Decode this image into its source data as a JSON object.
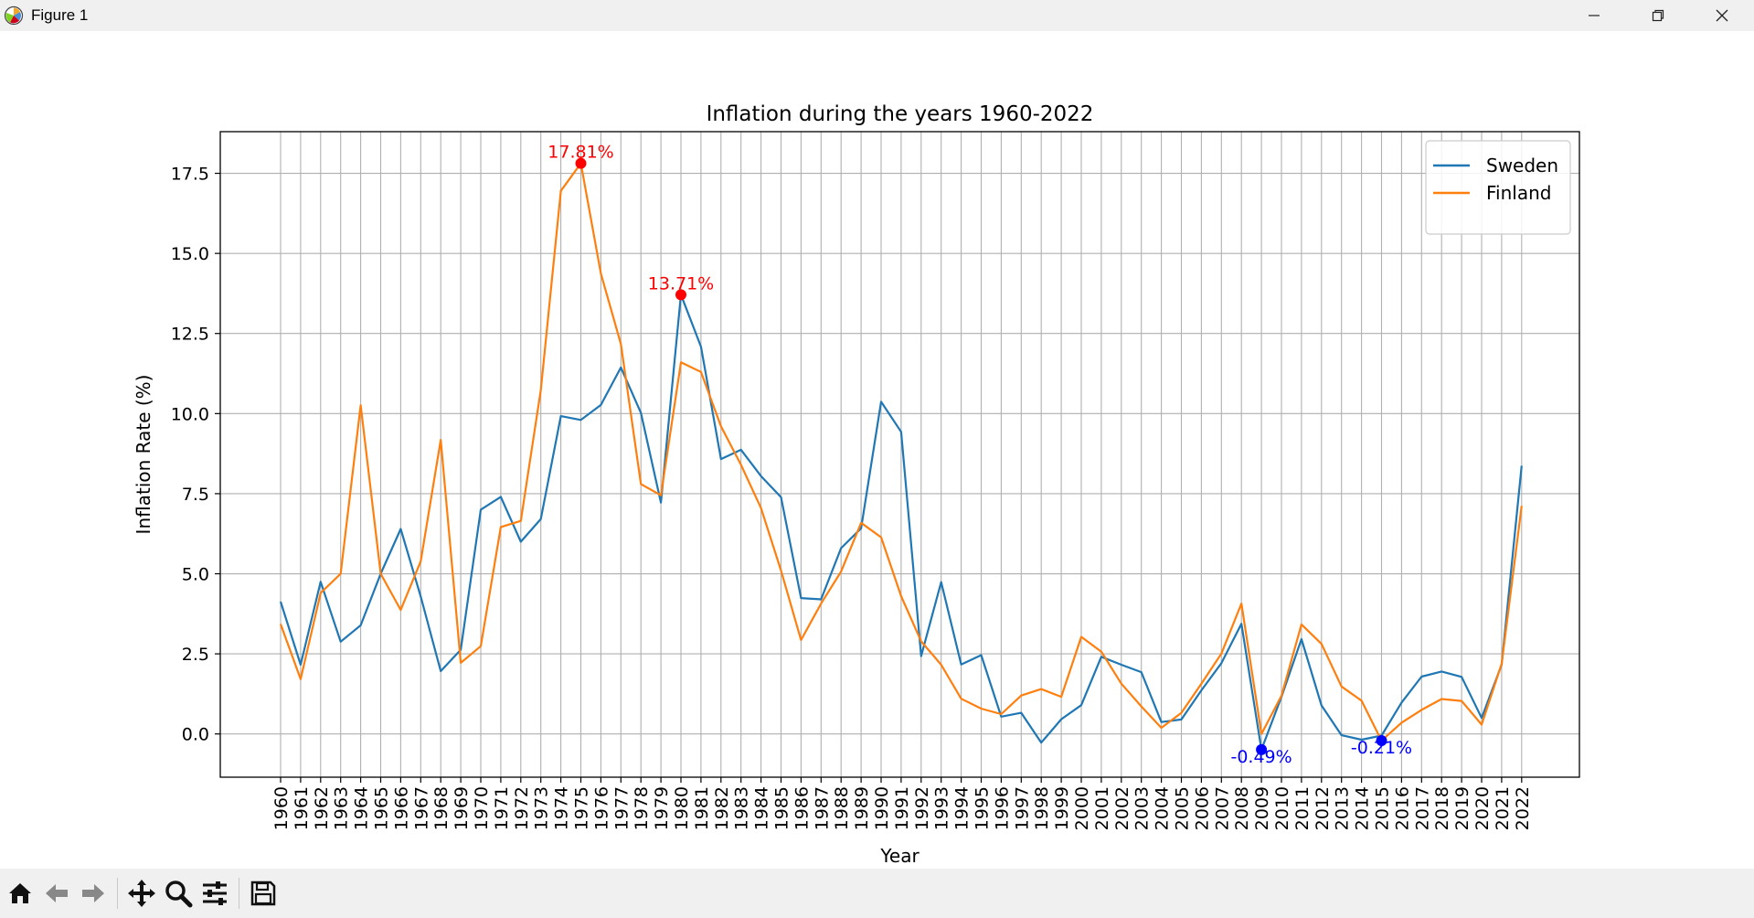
{
  "window": {
    "title": "Figure 1"
  },
  "toolbar": {
    "buttons": [
      "home-icon",
      "back-arrow-icon",
      "forward-arrow-icon",
      "pan-icon",
      "zoom-icon",
      "configure-subplots-icon",
      "save-icon"
    ]
  },
  "colors": {
    "sweden": "#1f77b4",
    "finland": "#ff7f0e",
    "max_marker": "#ff0000",
    "min_marker": "#0000ff"
  },
  "chart_data": {
    "type": "line",
    "title": "Inflation during the years 1960-2022",
    "xlabel": "Year",
    "ylabel": "Inflation Rate (%)",
    "ylim": [
      -1.35,
      18.8
    ],
    "yticks": [
      0.0,
      2.5,
      5.0,
      7.5,
      10.0,
      12.5,
      15.0,
      17.5
    ],
    "ytick_labels": [
      "0.0",
      "2.5",
      "5.0",
      "7.5",
      "10.0",
      "12.5",
      "15.0",
      "17.5"
    ],
    "grid": true,
    "legend_position": "top-right",
    "x": [
      "1960",
      "1961",
      "1962",
      "1963",
      "1964",
      "1965",
      "1966",
      "1967",
      "1968",
      "1969",
      "1970",
      "1971",
      "1972",
      "1973",
      "1974",
      "1975",
      "1976",
      "1977",
      "1978",
      "1979",
      "1980",
      "1981",
      "1982",
      "1983",
      "1984",
      "1985",
      "1986",
      "1987",
      "1988",
      "1989",
      "1990",
      "1991",
      "1992",
      "1993",
      "1994",
      "1995",
      "1996",
      "1997",
      "1998",
      "1999",
      "2000",
      "2001",
      "2002",
      "2003",
      "2004",
      "2005",
      "2006",
      "2007",
      "2008",
      "2009",
      "2010",
      "2011",
      "2012",
      "2013",
      "2014",
      "2015",
      "2016",
      "2017",
      "2018",
      "2019",
      "2020",
      "2021",
      "2022"
    ],
    "series": [
      {
        "name": "Sweden",
        "color": "#1f77b4",
        "values": [
          4.13,
          2.16,
          4.75,
          2.88,
          3.39,
          5.0,
          6.4,
          4.29,
          1.96,
          2.63,
          7.0,
          7.4,
          6.0,
          6.71,
          9.92,
          9.8,
          10.27,
          11.44,
          10.02,
          7.22,
          13.71,
          12.09,
          8.58,
          8.87,
          8.05,
          7.39,
          4.24,
          4.2,
          5.8,
          6.42,
          10.37,
          9.43,
          2.43,
          4.74,
          2.17,
          2.46,
          0.54,
          0.66,
          -0.27,
          0.46,
          0.9,
          2.41,
          2.16,
          1.93,
          0.37,
          0.45,
          1.36,
          2.21,
          3.44,
          -0.49,
          1.16,
          2.96,
          0.89,
          -0.04,
          -0.18,
          -0.05,
          0.98,
          1.79,
          1.95,
          1.78,
          0.5,
          2.16,
          8.37
        ]
      },
      {
        "name": "Finland",
        "color": "#ff7f0e",
        "values": [
          3.43,
          1.71,
          4.4,
          5.0,
          10.26,
          5.0,
          3.87,
          5.39,
          9.18,
          2.22,
          2.74,
          6.46,
          6.65,
          10.74,
          16.95,
          17.81,
          14.37,
          12.17,
          7.8,
          7.45,
          11.6,
          11.3,
          9.6,
          8.4,
          7.05,
          5.1,
          2.93,
          4.07,
          5.07,
          6.59,
          6.14,
          4.3,
          2.89,
          2.16,
          1.1,
          0.79,
          0.62,
          1.2,
          1.4,
          1.16,
          3.03,
          2.57,
          1.57,
          0.86,
          0.19,
          0.66,
          1.57,
          2.51,
          4.07,
          0.0,
          1.19,
          3.42,
          2.81,
          1.48,
          1.04,
          -0.21,
          0.35,
          0.75,
          1.09,
          1.03,
          0.29,
          2.19,
          7.12
        ]
      }
    ],
    "annotations": [
      {
        "label": "17.81%",
        "year": "1975",
        "value": 17.81,
        "kind": "max"
      },
      {
        "label": "13.71%",
        "year": "1980",
        "value": 13.71,
        "kind": "max"
      },
      {
        "label": "-0.49%",
        "year": "2009",
        "value": -0.49,
        "kind": "min"
      },
      {
        "label": "-0.21%",
        "year": "2015",
        "value": -0.21,
        "kind": "min"
      }
    ]
  }
}
